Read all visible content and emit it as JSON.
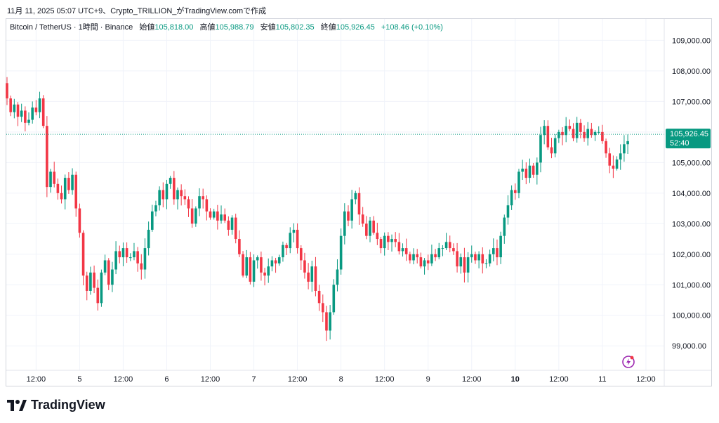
{
  "header": {
    "timestamp": "11月 11, 2025 05:07 UTC+9、Crypto_TRILLION_がTradingView.comで作成"
  },
  "legend": {
    "symbol": "Bitcoin / TetherUS · 1時間 · Binance",
    "open_label": "始値",
    "open": "105,818.00",
    "high_label": "高値",
    "high": "105,988.79",
    "low_label": "安値",
    "low": "105,802.35",
    "close_label": "終値",
    "close": "105,926.45",
    "change": "+108.46 (+0.10%)"
  },
  "price_tag": {
    "price": "105,926.45",
    "countdown": "52:40"
  },
  "brand": {
    "name": "TradingView",
    "icon": "tradingview-logo-icon"
  },
  "icons": {
    "alert": "lightning-alert-icon"
  },
  "colors": {
    "up": "#089981",
    "down": "#f23645",
    "grid": "#f0f3fa",
    "text": "#131722",
    "tag": "#089981"
  },
  "chart_data": {
    "type": "candlestick",
    "y_range": [
      98200,
      109700
    ],
    "y_ticks": [
      99000,
      100000,
      101000,
      102000,
      103000,
      104000,
      105000,
      106000,
      107000,
      108000,
      109000
    ],
    "y_tick_labels": [
      "99,000.00",
      "100,000.00",
      "101,000.00",
      "102,000.00",
      "103,000.00",
      "104,000.00",
      "105,000.00",
      "106,000.00",
      "107,000.00",
      "108,000.00",
      "109,000.00"
    ],
    "x_ticks": [
      {
        "label": "12:00",
        "bar": 8
      },
      {
        "label": "5",
        "bar": 20
      },
      {
        "label": "12:00",
        "bar": 32
      },
      {
        "label": "6",
        "bar": 44
      },
      {
        "label": "12:00",
        "bar": 56
      },
      {
        "label": "7",
        "bar": 68
      },
      {
        "label": "12:00",
        "bar": 80
      },
      {
        "label": "8",
        "bar": 92
      },
      {
        "label": "12:00",
        "bar": 104
      },
      {
        "label": "9",
        "bar": 116
      },
      {
        "label": "12:00",
        "bar": 128
      },
      {
        "label": "10",
        "bar": 140
      },
      {
        "label": "12:00",
        "bar": 152
      },
      {
        "label": "11",
        "bar": 164
      },
      {
        "label": "12:00",
        "bar": 176
      }
    ],
    "bold_x_ticks": [
      "10"
    ],
    "last_price": 105926.45,
    "bar_spacing_hint": "1h",
    "closes": [
      107100,
      106650,
      106900,
      106500,
      106700,
      106300,
      106400,
      106800,
      106650,
      107100,
      106200,
      104200,
      104700,
      104300,
      104000,
      103800,
      104500,
      104100,
      104600,
      103500,
      102700,
      101300,
      100800,
      101400,
      100900,
      100400,
      101400,
      101800,
      101000,
      101500,
      102100,
      101900,
      102200,
      101900,
      101900,
      102100,
      101700,
      101500,
      102200,
      102800,
      103400,
      103600,
      104100,
      103800,
      104300,
      104500,
      103800,
      104100,
      103900,
      103800,
      103500,
      103000,
      103500,
      103900,
      103800,
      103400,
      103200,
      103400,
      103100,
      103300,
      103100,
      102800,
      103200,
      102500,
      102000,
      101300,
      101900,
      101100,
      101800,
      101900,
      101400,
      101300,
      101600,
      101800,
      101700,
      101900,
      102300,
      102200,
      102700,
      102800,
      102200,
      101800,
      101400,
      101100,
      101600,
      100800,
      100400,
      100100,
      99500,
      100100,
      101000,
      101500,
      102600,
      103400,
      103100,
      103800,
      104000,
      103300,
      103000,
      102600,
      103100,
      102700,
      102500,
      102200,
      102600,
      102400,
      102500,
      102400,
      102100,
      102200,
      102000,
      101800,
      102000,
      101900,
      101600,
      101800,
      101700,
      102000,
      101900,
      102200,
      102200,
      102400,
      102200,
      102100,
      101600,
      101900,
      101400,
      101900,
      102000,
      101800,
      102000,
      101700,
      101700,
      102000,
      102200,
      101900,
      102600,
      103200,
      103600,
      104100,
      104000,
      104700,
      104800,
      104500,
      104900,
      104600,
      105000,
      105900,
      106200,
      105500,
      105300,
      105800,
      106000,
      105900,
      106200,
      106100,
      105800,
      106300,
      106000,
      105800,
      106100,
      105900,
      106000,
      106000,
      105700,
      105300,
      104900,
      104800,
      105100,
      105300,
      105600,
      105700
    ]
  }
}
